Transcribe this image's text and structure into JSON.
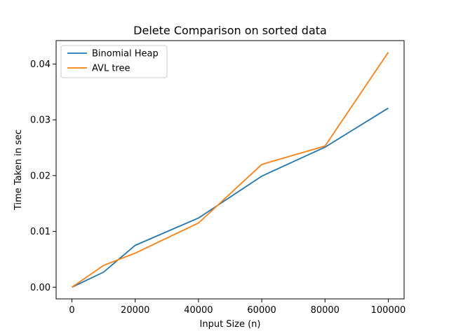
{
  "chart_data": {
    "type": "line",
    "title": "Delete Comparison on sorted data",
    "xlabel": "Input Size (n)",
    "ylabel": "Time Taken in sec",
    "x": [
      0,
      10000,
      20000,
      40000,
      60000,
      80000,
      100000
    ],
    "series": [
      {
        "name": "Binomial Heap",
        "color": "#1f77b4",
        "values": [
          0.0,
          0.0027,
          0.0075,
          0.0124,
          0.0199,
          0.0251,
          0.0321
        ]
      },
      {
        "name": "AVL tree",
        "color": "#ff7f0e",
        "values": [
          0.0,
          0.0039,
          0.0061,
          0.0115,
          0.022,
          0.0253,
          0.0421
        ]
      }
    ],
    "xlim": [
      -5000,
      105000
    ],
    "ylim": [
      -0.0021,
      0.0442
    ],
    "xticks": [
      0,
      20000,
      40000,
      60000,
      80000,
      100000
    ],
    "xtick_labels": [
      "0",
      "20000",
      "40000",
      "60000",
      "80000",
      "100000"
    ],
    "yticks": [
      0.0,
      0.01,
      0.02,
      0.03,
      0.04
    ],
    "ytick_labels": [
      "0.00",
      "0.01",
      "0.02",
      "0.03",
      "0.04"
    ],
    "grid": false,
    "legend_position": "top-left"
  }
}
